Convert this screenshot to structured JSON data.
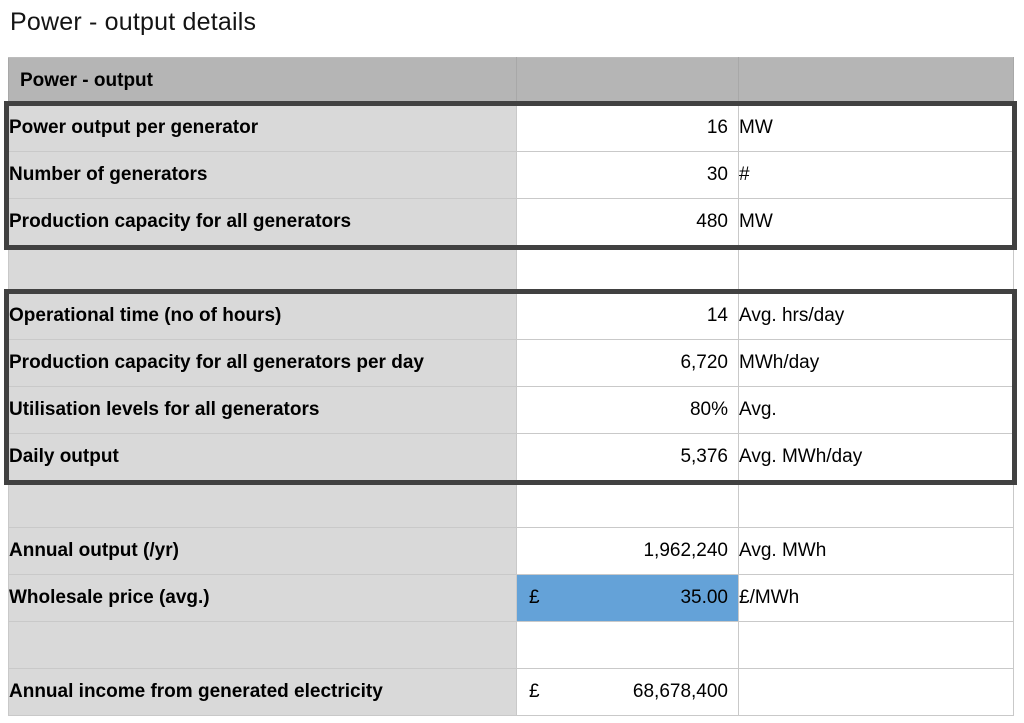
{
  "title": "Power - output details",
  "colors": {
    "header_gray": "#b5b5b5",
    "label_gray": "#d9d9d9",
    "gridline": "#c9c9c9",
    "block_outline": "#414141",
    "highlight_blue": "#64a2d8"
  },
  "table": {
    "header_label": "Power - output",
    "rows": [
      {
        "label": "Power output per generator",
        "currency": "",
        "value": "16",
        "unit": "MW"
      },
      {
        "label": "Number of generators",
        "currency": "",
        "value": "30",
        "unit": "#"
      },
      {
        "label": "Production capacity for all generators",
        "currency": "",
        "value": "480",
        "unit": "MW"
      },
      {
        "label": "",
        "currency": "",
        "value": "",
        "unit": ""
      },
      {
        "label": "Operational time (no of hours)",
        "currency": "",
        "value": "14",
        "unit": "Avg. hrs/day"
      },
      {
        "label": "Production capacity for all generators per day",
        "currency": "",
        "value": "6,720",
        "unit": "MWh/day"
      },
      {
        "label": "Utilisation levels for all generators",
        "currency": "",
        "value": "80%",
        "unit": "Avg."
      },
      {
        "label": "Daily output",
        "currency": "",
        "value": "5,376",
        "unit": "Avg. MWh/day"
      },
      {
        "label": "",
        "currency": "",
        "value": "",
        "unit": ""
      },
      {
        "label": "Annual output (/yr)",
        "currency": "",
        "value": "1,962,240",
        "unit": "Avg. MWh"
      },
      {
        "label": "Wholesale price (avg.)",
        "currency": "£",
        "value": "35.00",
        "unit": "£/MWh",
        "highlighted": true
      },
      {
        "label": "",
        "currency": "",
        "value": "",
        "unit": ""
      },
      {
        "label": "Annual income from generated electricity",
        "currency": "£",
        "value": "68,678,400",
        "unit": ""
      }
    ]
  }
}
